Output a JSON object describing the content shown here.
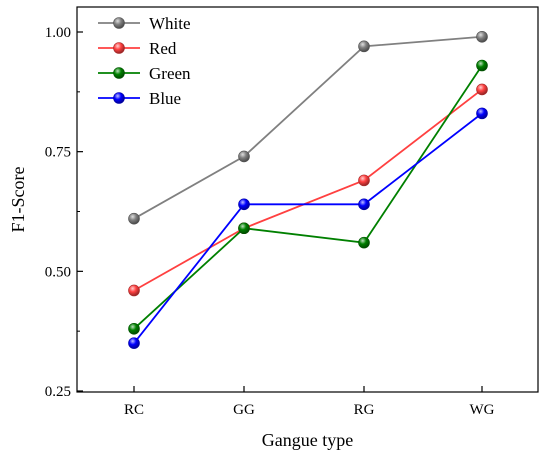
{
  "chart_data": {
    "type": "line",
    "categories": [
      "RC",
      "GG",
      "RG",
      "WG"
    ],
    "xlabel": "Gangue type",
    "ylabel": "F1-Score",
    "ylim": [
      0.25,
      1.05
    ],
    "yticks": [
      "0.25",
      "0.50",
      "0.75",
      "1.00"
    ],
    "grid": false,
    "legend_position": "top-left",
    "series": [
      {
        "name": "White",
        "color": "#808080",
        "values": [
          0.61,
          0.74,
          0.97,
          0.99
        ]
      },
      {
        "name": "Red",
        "color": "#ff4040",
        "values": [
          0.46,
          0.59,
          0.69,
          0.88
        ]
      },
      {
        "name": "Green",
        "color": "#008000",
        "values": [
          0.38,
          0.59,
          0.56,
          0.93
        ]
      },
      {
        "name": "Blue",
        "color": "#0000ff",
        "values": [
          0.35,
          0.64,
          0.64,
          0.83
        ]
      }
    ]
  }
}
